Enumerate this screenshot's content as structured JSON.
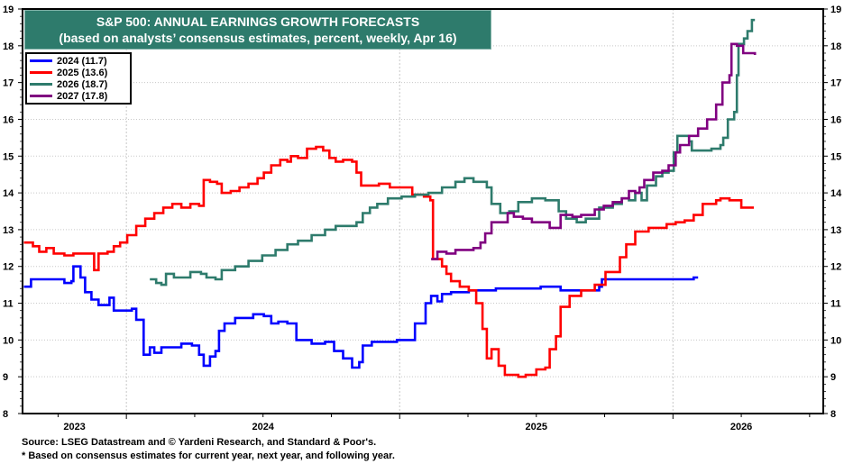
{
  "chart_data": {
    "type": "line",
    "title": "S&P 500: ANNUAL EARNINGS GROWTH FORECASTS",
    "subtitle": "(based on analysts’ consensus estimates, percent, weekly, Apr 16)",
    "xlabel": "",
    "ylabel": "",
    "xlim": [
      2023.62,
      2026.55
    ],
    "ylim": [
      8,
      19
    ],
    "yticks": [
      8,
      9,
      10,
      11,
      12,
      13,
      14,
      15,
      16,
      17,
      18,
      19
    ],
    "xtick_labels": [
      {
        "label": "2023",
        "x": 2023.81
      },
      {
        "label": "2024",
        "x": 2024.5
      },
      {
        "label": "2025",
        "x": 2025.5
      },
      {
        "label": "2026",
        "x": 2026.25
      }
    ],
    "x_gridlines": [
      2024.0,
      2025.0,
      2026.0
    ],
    "grid": true,
    "legend_position": "top-left",
    "series": [
      {
        "name": "2024 (11.7)",
        "color": "#0000ff",
        "points": [
          [
            2023.625,
            11.45
          ],
          [
            2023.651,
            11.65
          ],
          [
            2023.757,
            11.65
          ],
          [
            2023.773,
            11.55
          ],
          [
            2023.799,
            11.6
          ],
          [
            2023.806,
            12.0
          ],
          [
            2023.826,
            12.0
          ],
          [
            2023.832,
            11.7
          ],
          [
            2023.849,
            11.3
          ],
          [
            2023.872,
            11.1
          ],
          [
            2023.898,
            10.95
          ],
          [
            2023.931,
            10.95
          ],
          [
            2023.938,
            11.15
          ],
          [
            2023.954,
            10.8
          ],
          [
            2023.987,
            10.8
          ],
          [
            2024.02,
            10.85
          ],
          [
            2024.036,
            10.55
          ],
          [
            2024.063,
            9.6
          ],
          [
            2024.086,
            9.8
          ],
          [
            2024.102,
            9.65
          ],
          [
            2024.128,
            9.8
          ],
          [
            2024.168,
            9.8
          ],
          [
            2024.201,
            9.9
          ],
          [
            2024.24,
            9.85
          ],
          [
            2024.266,
            9.6
          ],
          [
            2024.283,
            9.3
          ],
          [
            2024.306,
            9.55
          ],
          [
            2024.326,
            9.7
          ],
          [
            2024.339,
            10.25
          ],
          [
            2024.359,
            10.45
          ],
          [
            2024.398,
            10.6
          ],
          [
            2024.464,
            10.7
          ],
          [
            2024.503,
            10.65
          ],
          [
            2024.53,
            10.45
          ],
          [
            2024.556,
            10.5
          ],
          [
            2024.589,
            10.45
          ],
          [
            2024.622,
            10.0
          ],
          [
            2024.678,
            9.9
          ],
          [
            2024.727,
            9.95
          ],
          [
            2024.76,
            9.7
          ],
          [
            2024.793,
            9.5
          ],
          [
            2024.826,
            9.25
          ],
          [
            2024.852,
            9.4
          ],
          [
            2024.865,
            9.85
          ],
          [
            2024.898,
            9.95
          ],
          [
            2024.951,
            9.95
          ],
          [
            2024.99,
            10.0
          ],
          [
            2025.043,
            10.0
          ],
          [
            2025.056,
            10.45
          ],
          [
            2025.095,
            11.0
          ],
          [
            2025.115,
            11.2
          ],
          [
            2025.138,
            11.05
          ],
          [
            2025.155,
            11.25
          ],
          [
            2025.188,
            11.3
          ],
          [
            2025.253,
            11.35
          ],
          [
            2025.352,
            11.4
          ],
          [
            2025.516,
            11.45
          ],
          [
            2025.589,
            11.35
          ],
          [
            2025.681,
            11.35
          ],
          [
            2025.73,
            11.45
          ],
          [
            2025.74,
            11.65
          ],
          [
            2025.845,
            11.65
          ],
          [
            2025.977,
            11.65
          ],
          [
            2026.076,
            11.7
          ],
          [
            2026.092,
            11.7
          ]
        ]
      },
      {
        "name": "2025 (13.6)",
        "color": "#ff0000",
        "points": [
          [
            2023.625,
            12.65
          ],
          [
            2023.658,
            12.55
          ],
          [
            2023.681,
            12.4
          ],
          [
            2023.707,
            12.5
          ],
          [
            2023.734,
            12.35
          ],
          [
            2023.773,
            12.3
          ],
          [
            2023.806,
            12.35
          ],
          [
            2023.832,
            12.35
          ],
          [
            2023.872,
            12.35
          ],
          [
            2023.882,
            11.9
          ],
          [
            2023.898,
            12.35
          ],
          [
            2023.931,
            12.4
          ],
          [
            2023.954,
            12.55
          ],
          [
            2023.977,
            12.65
          ],
          [
            2024.003,
            12.85
          ],
          [
            2024.036,
            13.1
          ],
          [
            2024.069,
            13.3
          ],
          [
            2024.102,
            13.45
          ],
          [
            2024.135,
            13.6
          ],
          [
            2024.168,
            13.7
          ],
          [
            2024.201,
            13.6
          ],
          [
            2024.234,
            13.7
          ],
          [
            2024.266,
            13.65
          ],
          [
            2024.283,
            14.35
          ],
          [
            2024.306,
            14.3
          ],
          [
            2024.332,
            14.25
          ],
          [
            2024.349,
            14.0
          ],
          [
            2024.382,
            14.05
          ],
          [
            2024.414,
            14.15
          ],
          [
            2024.447,
            14.25
          ],
          [
            2024.48,
            14.4
          ],
          [
            2024.503,
            14.55
          ],
          [
            2024.53,
            14.75
          ],
          [
            2024.563,
            14.9
          ],
          [
            2024.589,
            14.85
          ],
          [
            2024.602,
            15.0
          ],
          [
            2024.628,
            14.95
          ],
          [
            2024.661,
            15.2
          ],
          [
            2024.694,
            15.25
          ],
          [
            2024.72,
            15.15
          ],
          [
            2024.743,
            14.95
          ],
          [
            2024.766,
            14.85
          ],
          [
            2024.793,
            14.9
          ],
          [
            2024.826,
            14.85
          ],
          [
            2024.842,
            14.55
          ],
          [
            2024.859,
            14.2
          ],
          [
            2024.891,
            14.2
          ],
          [
            2024.924,
            14.25
          ],
          [
            2024.964,
            14.15
          ],
          [
            2024.997,
            14.15
          ],
          [
            2025.023,
            14.15
          ],
          [
            2025.046,
            13.95
          ],
          [
            2025.089,
            13.9
          ],
          [
            2025.112,
            13.8
          ],
          [
            2025.122,
            12.2
          ],
          [
            2025.155,
            12.0
          ],
          [
            2025.171,
            11.8
          ],
          [
            2025.188,
            11.6
          ],
          [
            2025.22,
            11.45
          ],
          [
            2025.253,
            11.35
          ],
          [
            2025.28,
            11.0
          ],
          [
            2025.303,
            10.3
          ],
          [
            2025.319,
            9.5
          ],
          [
            2025.336,
            9.75
          ],
          [
            2025.362,
            9.3
          ],
          [
            2025.385,
            9.05
          ],
          [
            2025.434,
            9.0
          ],
          [
            2025.461,
            9.05
          ],
          [
            2025.5,
            9.2
          ],
          [
            2025.533,
            9.25
          ],
          [
            2025.549,
            9.75
          ],
          [
            2025.572,
            10.1
          ],
          [
            2025.589,
            10.9
          ],
          [
            2025.622,
            11.2
          ],
          [
            2025.664,
            11.35
          ],
          [
            2025.714,
            11.5
          ],
          [
            2025.753,
            11.85
          ],
          [
            2025.806,
            12.25
          ],
          [
            2025.829,
            12.6
          ],
          [
            2025.862,
            12.95
          ],
          [
            2025.911,
            13.05
          ],
          [
            2025.977,
            13.15
          ],
          [
            2026.01,
            13.2
          ],
          [
            2026.043,
            13.25
          ],
          [
            2026.076,
            13.4
          ],
          [
            2026.109,
            13.7
          ],
          [
            2026.158,
            13.8
          ],
          [
            2026.174,
            13.85
          ],
          [
            2026.207,
            13.8
          ],
          [
            2026.24,
            13.8
          ],
          [
            2026.25,
            13.6
          ],
          [
            2026.296,
            13.6
          ]
        ]
      },
      {
        "name": "2026 (18.7)",
        "color": "#2e7b6c",
        "points": [
          [
            2024.086,
            11.65
          ],
          [
            2024.109,
            11.55
          ],
          [
            2024.128,
            11.5
          ],
          [
            2024.145,
            11.8
          ],
          [
            2024.174,
            11.7
          ],
          [
            2024.217,
            11.7
          ],
          [
            2024.234,
            11.85
          ],
          [
            2024.273,
            11.8
          ],
          [
            2024.293,
            11.7
          ],
          [
            2024.326,
            11.65
          ],
          [
            2024.349,
            11.9
          ],
          [
            2024.398,
            12.0
          ],
          [
            2024.447,
            12.15
          ],
          [
            2024.497,
            12.3
          ],
          [
            2024.546,
            12.45
          ],
          [
            2024.589,
            12.6
          ],
          [
            2024.628,
            12.7
          ],
          [
            2024.678,
            12.85
          ],
          [
            2024.727,
            13.0
          ],
          [
            2024.766,
            13.1
          ],
          [
            2024.809,
            13.1
          ],
          [
            2024.842,
            13.2
          ],
          [
            2024.865,
            13.45
          ],
          [
            2024.891,
            13.6
          ],
          [
            2024.918,
            13.7
          ],
          [
            2024.957,
            13.85
          ],
          [
            2025.007,
            13.9
          ],
          [
            2025.056,
            13.95
          ],
          [
            2025.105,
            14.0
          ],
          [
            2025.155,
            14.15
          ],
          [
            2025.204,
            14.3
          ],
          [
            2025.237,
            14.4
          ],
          [
            2025.27,
            14.3
          ],
          [
            2025.319,
            14.15
          ],
          [
            2025.336,
            13.7
          ],
          [
            2025.368,
            13.45
          ],
          [
            2025.401,
            13.5
          ],
          [
            2025.434,
            13.75
          ],
          [
            2025.484,
            13.85
          ],
          [
            2025.533,
            13.8
          ],
          [
            2025.582,
            13.5
          ],
          [
            2025.609,
            13.3
          ],
          [
            2025.648,
            13.2
          ],
          [
            2025.681,
            13.3
          ],
          [
            2025.73,
            13.6
          ],
          [
            2025.78,
            13.7
          ],
          [
            2025.813,
            13.85
          ],
          [
            2025.839,
            13.8
          ],
          [
            2025.862,
            14.0
          ],
          [
            2025.885,
            13.8
          ],
          [
            2025.905,
            14.2
          ],
          [
            2025.938,
            14.45
          ],
          [
            2025.961,
            14.55
          ],
          [
            2025.984,
            14.6
          ],
          [
            2026.003,
            15.1
          ],
          [
            2026.016,
            15.55
          ],
          [
            2026.043,
            15.55
          ],
          [
            2026.059,
            15.4
          ],
          [
            2026.069,
            15.15
          ],
          [
            2026.109,
            15.15
          ],
          [
            2026.141,
            15.2
          ],
          [
            2026.174,
            15.3
          ],
          [
            2026.184,
            15.5
          ],
          [
            2026.201,
            16.0
          ],
          [
            2026.224,
            16.2
          ],
          [
            2026.234,
            17.2
          ],
          [
            2026.24,
            18.05
          ],
          [
            2026.26,
            18.2
          ],
          [
            2026.273,
            18.4
          ],
          [
            2026.289,
            18.7
          ],
          [
            2026.3,
            18.7
          ]
        ]
      },
      {
        "name": "2027 (17.8)",
        "color": "#800080",
        "points": [
          [
            2025.115,
            12.2
          ],
          [
            2025.138,
            12.4
          ],
          [
            2025.171,
            12.35
          ],
          [
            2025.204,
            12.45
          ],
          [
            2025.237,
            12.45
          ],
          [
            2025.27,
            12.5
          ],
          [
            2025.296,
            12.65
          ],
          [
            2025.313,
            12.9
          ],
          [
            2025.336,
            13.2
          ],
          [
            2025.368,
            13.2
          ],
          [
            2025.395,
            13.45
          ],
          [
            2025.418,
            13.35
          ],
          [
            2025.451,
            13.3
          ],
          [
            2025.484,
            13.2
          ],
          [
            2025.516,
            13.2
          ],
          [
            2025.549,
            13.05
          ],
          [
            2025.582,
            13.05
          ],
          [
            2025.589,
            13.4
          ],
          [
            2025.632,
            13.35
          ],
          [
            2025.664,
            13.4
          ],
          [
            2025.714,
            13.55
          ],
          [
            2025.747,
            13.65
          ],
          [
            2025.78,
            13.75
          ],
          [
            2025.813,
            13.85
          ],
          [
            2025.839,
            14.05
          ],
          [
            2025.862,
            14.0
          ],
          [
            2025.878,
            14.15
          ],
          [
            2025.895,
            14.35
          ],
          [
            2025.928,
            14.55
          ],
          [
            2025.961,
            14.6
          ],
          [
            2025.984,
            14.75
          ],
          [
            2026.01,
            15.1
          ],
          [
            2026.026,
            15.3
          ],
          [
            2026.059,
            15.55
          ],
          [
            2026.092,
            15.75
          ],
          [
            2026.125,
            16.0
          ],
          [
            2026.158,
            16.4
          ],
          [
            2026.181,
            17.0
          ],
          [
            2026.207,
            17.2
          ],
          [
            2026.214,
            18.05
          ],
          [
            2026.234,
            18.0
          ],
          [
            2026.257,
            17.8
          ],
          [
            2026.3,
            17.75
          ]
        ]
      }
    ]
  },
  "footnotes": {
    "source": "Source: LSEG Datastream and © Yardeni Research, and Standard & Poor's.",
    "note": "* Based on consensus estimates for current year, next year, and following year."
  }
}
